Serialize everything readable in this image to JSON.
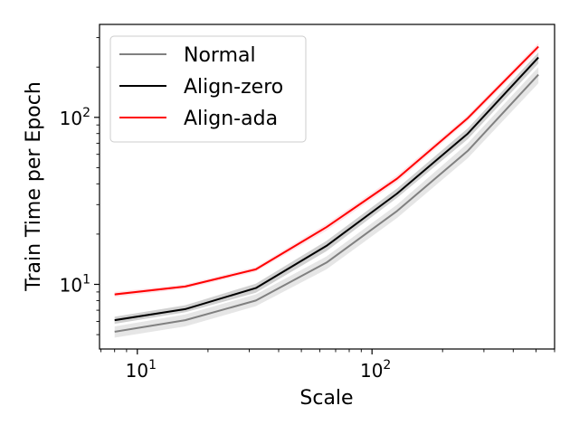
{
  "chart_data": {
    "type": "line",
    "title": "",
    "xlabel": "Scale",
    "ylabel": "Train Time per Epoch",
    "xscale": "log",
    "yscale": "log",
    "xlim": [
      6.9,
      600
    ],
    "ylim": [
      4.1,
      360
    ],
    "x": [
      8,
      16,
      32,
      64,
      128,
      256,
      512
    ],
    "x_ticks": [
      {
        "value": 10,
        "base": "10",
        "exp": "1"
      },
      {
        "value": 100,
        "base": "10",
        "exp": "2"
      }
    ],
    "y_ticks": [
      {
        "value": 10,
        "base": "10",
        "exp": "1"
      },
      {
        "value": 100,
        "base": "10",
        "exp": "2"
      }
    ],
    "grid": false,
    "legend_position": "upper-left",
    "series": [
      {
        "name": "Normal",
        "color": "#808080",
        "band_color": "#c8c8c8",
        "values": [
          5.2,
          6.1,
          8.0,
          13.5,
          27.5,
          63,
          180
        ],
        "lower": [
          4.8,
          5.6,
          7.4,
          12.3,
          25,
          57,
          160
        ],
        "upper": [
          5.6,
          6.6,
          8.7,
          14.7,
          30,
          70,
          200
        ]
      },
      {
        "name": "Align-zero",
        "color": "#000000",
        "band_color": "#9a9a9a",
        "values": [
          6.1,
          7.1,
          9.5,
          17,
          35,
          80,
          228
        ],
        "lower": [
          5.8,
          6.8,
          8.9,
          15.8,
          33,
          74,
          210
        ],
        "upper": [
          6.4,
          7.5,
          10.1,
          18.2,
          37.5,
          86,
          245
        ]
      },
      {
        "name": "Align-ada",
        "color": "#ff0000",
        "band_color": "#ffc0cb",
        "values": [
          8.7,
          9.7,
          12.3,
          22,
          43,
          99,
          265
        ],
        "lower": [
          8.4,
          9.4,
          11.9,
          21,
          41,
          95,
          252
        ],
        "upper": [
          9.0,
          10.0,
          12.7,
          23,
          45,
          103,
          278
        ]
      }
    ]
  }
}
